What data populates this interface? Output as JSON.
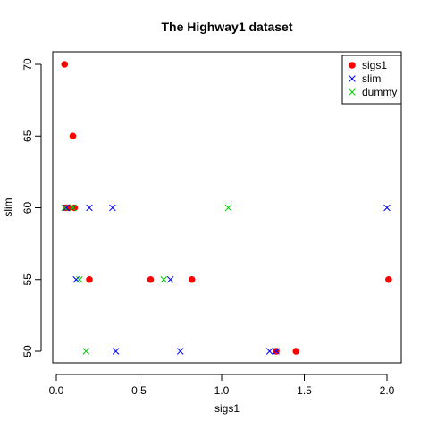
{
  "chart_data": {
    "type": "scatter",
    "title": "The Highway1 dataset",
    "xlabel": "sigs1",
    "ylabel": "slim",
    "xlim": [
      0.0,
      2.0
    ],
    "ylim": [
      50,
      70
    ],
    "x_ticks": [
      0.0,
      0.5,
      1.0,
      1.5,
      2.0
    ],
    "x_tick_labels": [
      "0.0",
      "0.5",
      "1.0",
      "1.5",
      "2.0"
    ],
    "y_ticks": [
      50,
      55,
      60,
      65,
      70
    ],
    "y_tick_labels": [
      "50",
      "55",
      "60",
      "65",
      "70"
    ],
    "legend_position": "top-right",
    "series": [
      {
        "name": "sigs1",
        "marker": "dot",
        "color": "#ff0000",
        "points": [
          [
            0.05,
            70
          ],
          [
            0.1,
            65
          ],
          [
            0.06,
            60
          ],
          [
            0.08,
            60
          ],
          [
            0.11,
            60
          ],
          [
            0.2,
            55
          ],
          [
            0.57,
            55
          ],
          [
            0.82,
            55
          ],
          [
            2.01,
            55
          ],
          [
            1.33,
            50
          ],
          [
            1.45,
            50
          ]
        ]
      },
      {
        "name": "slim",
        "marker": "x",
        "color": "#0000ff",
        "points": [
          [
            0.06,
            60
          ],
          [
            0.2,
            60
          ],
          [
            0.34,
            60
          ],
          [
            2.0,
            60
          ],
          [
            0.12,
            55
          ],
          [
            0.69,
            55
          ],
          [
            0.36,
            50
          ],
          [
            0.75,
            50
          ],
          [
            1.29,
            50
          ],
          [
            1.33,
            50
          ]
        ]
      },
      {
        "name": "dummy",
        "marker": "x",
        "color": "#00cc00",
        "points": [
          [
            0.05,
            60
          ],
          [
            0.1,
            60
          ],
          [
            1.04,
            60
          ],
          [
            0.14,
            55
          ],
          [
            0.65,
            55
          ],
          [
            0.18,
            50
          ]
        ]
      }
    ]
  }
}
